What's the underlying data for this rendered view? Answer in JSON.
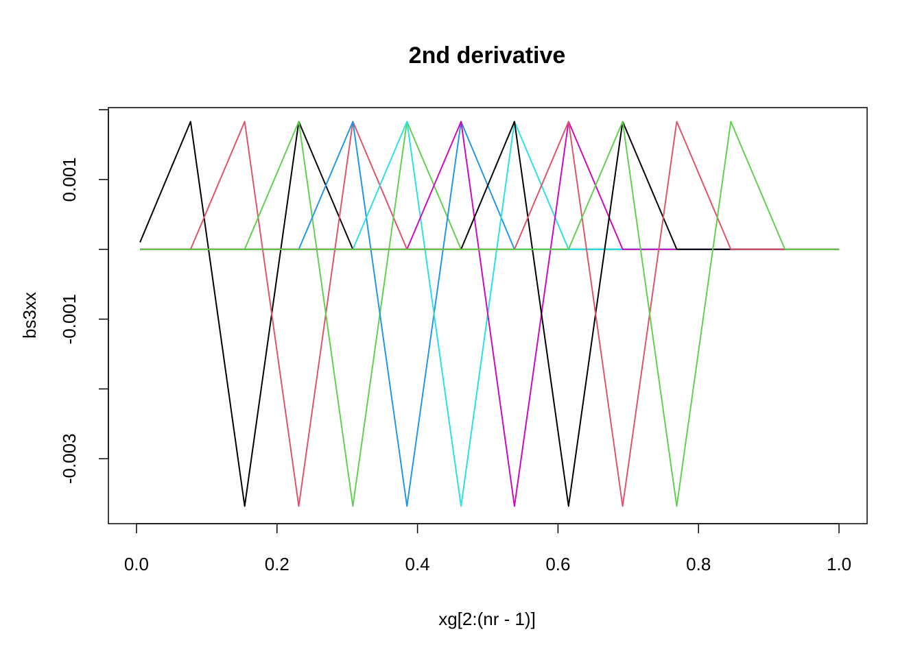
{
  "chart_data": {
    "type": "line",
    "title": "2nd derivative",
    "xlabel": "xg[2:(nr - 1)]",
    "ylabel": "bs3xx",
    "xlim": [
      -0.04,
      1.04
    ],
    "ylim": [
      -0.00393,
      0.00203
    ],
    "x_ticks": [
      0.0,
      0.2,
      0.4,
      0.6,
      0.8,
      1.0
    ],
    "x_tick_labels": [
      "0.0",
      "0.2",
      "0.4",
      "0.6",
      "0.8",
      "1.0"
    ],
    "y_ticks": [
      -0.003,
      -0.002,
      -0.001,
      0.0,
      0.001,
      0.002
    ],
    "y_tick_labels": [
      "-0.003",
      "",
      "-0.001",
      "",
      "0.001",
      ""
    ],
    "grid": false,
    "legend": "none",
    "series": [
      {
        "color": "#000000",
        "x": [
          0.005,
          0.077,
          0.154,
          0.231,
          0.308,
          1.0
        ],
        "values": [
          0.0001,
          0.00183,
          -0.00368,
          0.00183,
          0.0,
          0.0
        ]
      },
      {
        "color": "#DF536B",
        "x": [
          0.005,
          0.077,
          0.154,
          0.231,
          0.308,
          0.385,
          1.0
        ],
        "values": [
          0.0,
          0.0,
          0.00183,
          -0.00368,
          0.00183,
          0.0,
          0.0
        ]
      },
      {
        "color": "#61D04F",
        "x": [
          0.005,
          0.154,
          0.231,
          0.308,
          0.385,
          0.462,
          1.0
        ],
        "values": [
          0.0,
          0.0,
          0.00183,
          -0.00368,
          0.00183,
          0.0,
          0.0
        ]
      },
      {
        "color": "#2297E6",
        "x": [
          0.005,
          0.231,
          0.308,
          0.385,
          0.462,
          0.538,
          1.0
        ],
        "values": [
          0.0,
          0.0,
          0.00183,
          -0.00368,
          0.00183,
          0.0,
          0.0
        ]
      },
      {
        "color": "#28E2E5",
        "x": [
          0.005,
          0.308,
          0.385,
          0.462,
          0.538,
          0.615,
          1.0
        ],
        "values": [
          0.0,
          0.0,
          0.00183,
          -0.00368,
          0.00183,
          0.0,
          0.0
        ]
      },
      {
        "color": "#CD0BBC",
        "x": [
          0.005,
          0.385,
          0.462,
          0.538,
          0.615,
          0.692,
          1.0
        ],
        "values": [
          0.0,
          0.0,
          0.00183,
          -0.00368,
          0.00183,
          0.0,
          0.0
        ]
      },
      {
        "color": "#000000",
        "x": [
          0.005,
          0.462,
          0.538,
          0.615,
          0.692,
          0.769,
          1.0
        ],
        "values": [
          0.0,
          0.0,
          0.00183,
          -0.00368,
          0.00183,
          0.0,
          0.0
        ]
      },
      {
        "color": "#DF536B",
        "x": [
          0.005,
          0.538,
          0.615,
          0.692,
          0.769,
          0.846,
          1.0
        ],
        "values": [
          0.0,
          0.0,
          0.00183,
          -0.00368,
          0.00183,
          0.0,
          0.0
        ]
      },
      {
        "color": "#61D04F",
        "x": [
          0.005,
          0.615,
          0.692,
          0.769,
          0.846,
          0.923,
          1.0
        ],
        "values": [
          0.0,
          0.0,
          0.00183,
          -0.00368,
          0.00183,
          0.0,
          0.0
        ]
      }
    ]
  }
}
